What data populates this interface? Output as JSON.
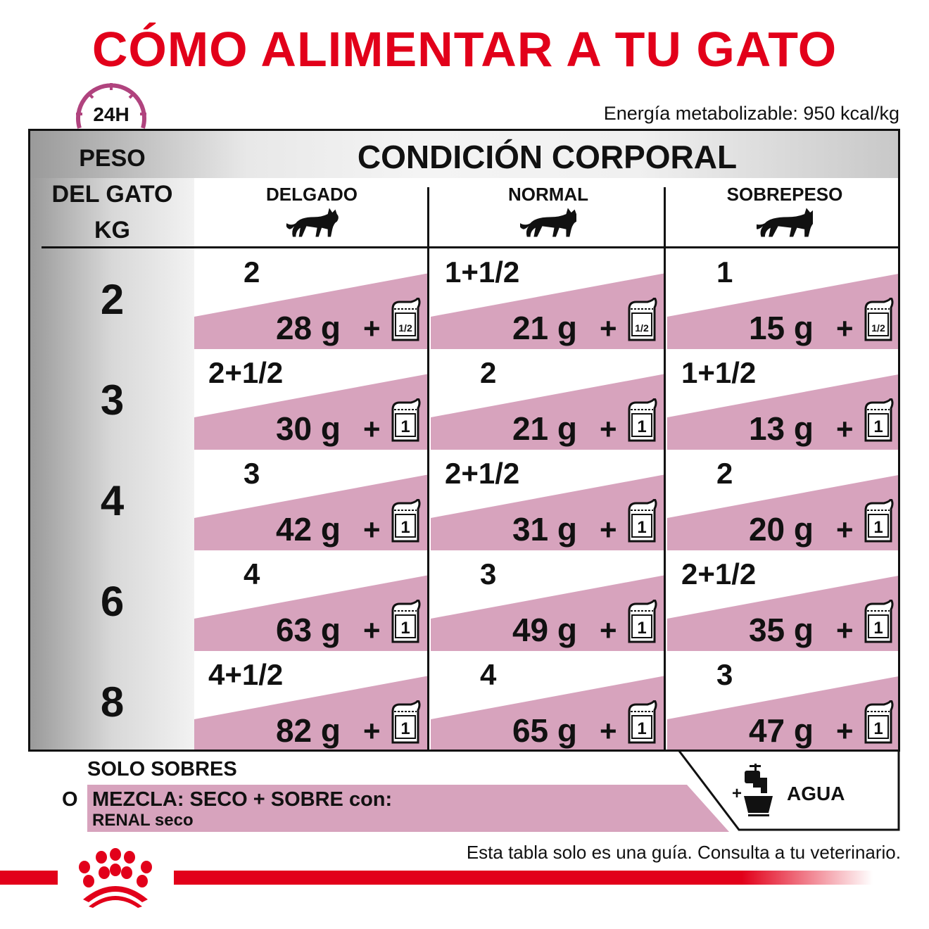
{
  "title": "CÓMO ALIMENTAR A TU GATO",
  "clock_label": "24H",
  "energy": "Energía metabolizable: 950 kcal/kg",
  "table": {
    "weight_header": [
      "PESO",
      "DEL GATO",
      "KG"
    ],
    "condition_header": "CONDICIÓN CORPORAL",
    "columns": [
      "DELGADO",
      "NORMAL",
      "SOBREPESO"
    ],
    "rows": [
      {
        "weight": "2",
        "cells": [
          {
            "pouches": "2",
            "dry": "28 g",
            "plus": "+",
            "pouch_icon": "1/2"
          },
          {
            "pouches": "1+1/2",
            "dry": "21 g",
            "plus": "+",
            "pouch_icon": "1/2"
          },
          {
            "pouches": "1",
            "dry": "15 g",
            "plus": "+",
            "pouch_icon": "1/2"
          }
        ]
      },
      {
        "weight": "3",
        "cells": [
          {
            "pouches": "2+1/2",
            "dry": "30 g",
            "plus": "+",
            "pouch_icon": "1"
          },
          {
            "pouches": "2",
            "dry": "21 g",
            "plus": "+",
            "pouch_icon": "1"
          },
          {
            "pouches": "1+1/2",
            "dry": "13 g",
            "plus": "+",
            "pouch_icon": "1"
          }
        ]
      },
      {
        "weight": "4",
        "cells": [
          {
            "pouches": "3",
            "dry": "42 g",
            "plus": "+",
            "pouch_icon": "1"
          },
          {
            "pouches": "2+1/2",
            "dry": "31 g",
            "plus": "+",
            "pouch_icon": "1"
          },
          {
            "pouches": "2",
            "dry": "20 g",
            "plus": "+",
            "pouch_icon": "1"
          }
        ]
      },
      {
        "weight": "6",
        "cells": [
          {
            "pouches": "4",
            "dry": "63 g",
            "plus": "+",
            "pouch_icon": "1"
          },
          {
            "pouches": "3",
            "dry": "49 g",
            "plus": "+",
            "pouch_icon": "1"
          },
          {
            "pouches": "2+1/2",
            "dry": "35 g",
            "plus": "+",
            "pouch_icon": "1"
          }
        ]
      },
      {
        "weight": "8",
        "cells": [
          {
            "pouches": "4+1/2",
            "dry": "82 g",
            "plus": "+",
            "pouch_icon": "1"
          },
          {
            "pouches": "4",
            "dry": "65 g",
            "plus": "+",
            "pouch_icon": "1"
          },
          {
            "pouches": "3",
            "dry": "47 g",
            "plus": "+",
            "pouch_icon": "1"
          }
        ]
      }
    ]
  },
  "legend": {
    "solo": "SOLO SOBRES",
    "o": "O",
    "mix_line1": "MEZCLA: SECO + SOBRE con:",
    "mix_line2": "RENAL seco",
    "water_plus": "+",
    "water": "AGUA"
  },
  "note": "Esta tabla solo es una guía. Consulta a tu veterinario.",
  "colors": {
    "brand_red": "#e2001a",
    "pink": "#d7a3bd",
    "clock": "#b0437e"
  }
}
